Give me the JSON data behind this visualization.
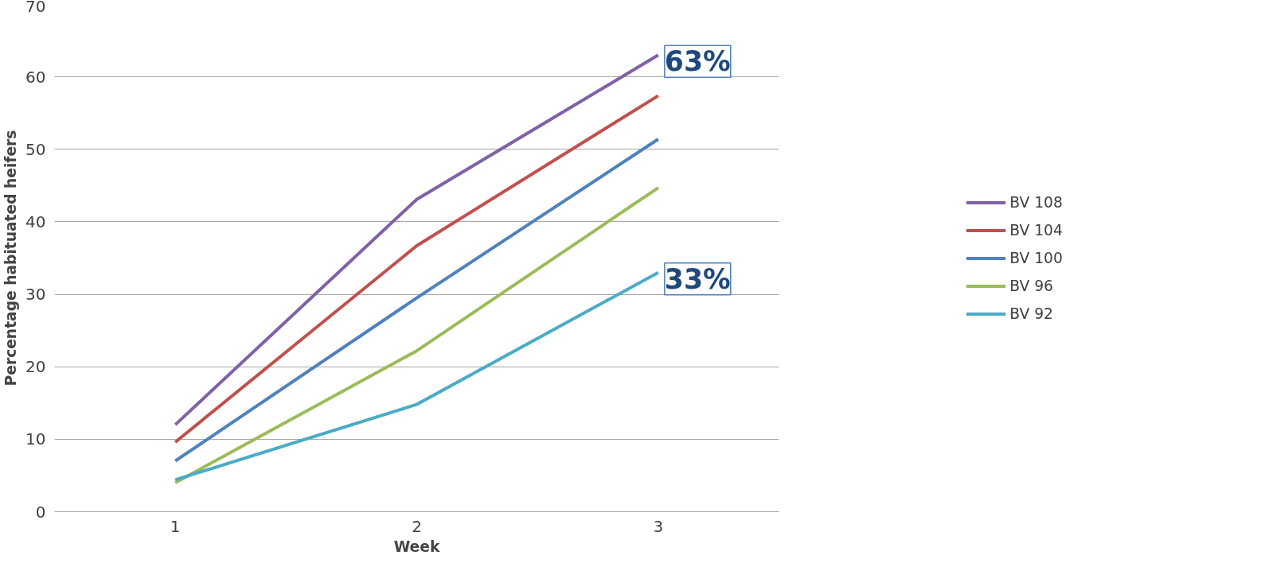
{
  "chart_data": {
    "type": "line",
    "xlabel": "Week",
    "ylabel": "Percentage habituated heifers",
    "categories": [
      "1",
      "2",
      "3"
    ],
    "series": [
      {
        "name": "BV 108",
        "color": "#7f62a6",
        "values": [
          12,
          43.1,
          63
        ]
      },
      {
        "name": "BV 104",
        "color": "#c0504d",
        "values": [
          9.6,
          36.7,
          57.4
        ]
      },
      {
        "name": "BV 100",
        "color": "#4f81bd",
        "values": [
          7,
          29.5,
          51.4
        ]
      },
      {
        "name": "BV 96",
        "color": "#9bbb59",
        "values": [
          4,
          22.2,
          44.7
        ]
      },
      {
        "name": "BV 92",
        "color": "#4bacc6",
        "values": [
          4.4,
          14.8,
          33
        ]
      }
    ],
    "ylim": [
      0,
      70
    ],
    "yticks": [
      0,
      10,
      20,
      30,
      40,
      50,
      60,
      70
    ],
    "grid": "y",
    "legend": "right",
    "marker": "none",
    "annotations": [
      {
        "text": "63%",
        "x": "3",
        "y": 63
      },
      {
        "text": "33%",
        "x": "3",
        "y": 33
      }
    ]
  }
}
